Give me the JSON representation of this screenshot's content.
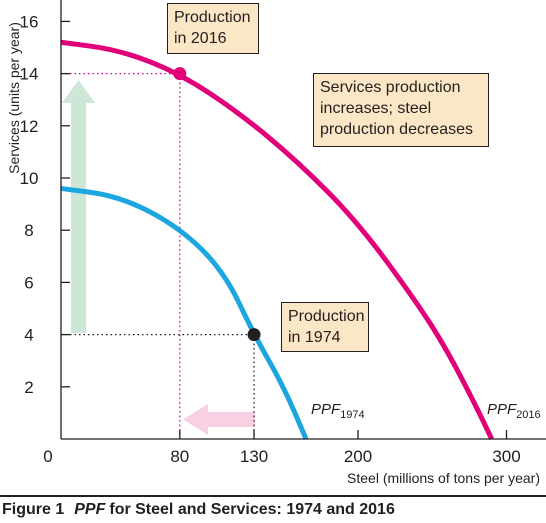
{
  "chart_data": {
    "type": "line",
    "title": "",
    "xlabel": "Steel (millions of tons per year)",
    "ylabel": "Services (units per year)",
    "xlim": [
      0,
      320
    ],
    "ylim": [
      0,
      17
    ],
    "x_ticks": [
      0,
      80,
      130,
      200,
      300
    ],
    "x_tick_labels": [
      "0",
      "80",
      "130",
      "200",
      "300"
    ],
    "y_ticks": [
      2,
      4,
      6,
      8,
      10,
      12,
      14,
      16
    ],
    "y_tick_labels": [
      "2",
      "4",
      "6",
      "8",
      "10",
      "12",
      "14",
      "16"
    ],
    "grid": false,
    "series": [
      {
        "name": "PPF2016",
        "color": "#e2007a",
        "x": [
          0,
          40,
          80,
          120,
          160,
          200,
          240,
          260,
          280,
          290
        ],
        "y": [
          15.2,
          14.9,
          14.0,
          12.5,
          10.6,
          8.3,
          5.2,
          3.4,
          1.2,
          0
        ]
      },
      {
        "name": "PPF1974",
        "color": "#1ba6e0",
        "x": [
          0,
          40,
          80,
          110,
          130,
          150,
          165
        ],
        "y": [
          9.6,
          9.3,
          8.1,
          6.4,
          4.0,
          2.0,
          0
        ]
      }
    ],
    "points": [
      {
        "name": "Production in 2016",
        "x": 80,
        "y": 14,
        "color": "#e2007a"
      },
      {
        "name": "Production in 1974",
        "x": 130,
        "y": 4,
        "color": "#231f20"
      }
    ],
    "arrows": [
      {
        "direction": "up",
        "color": "#cde7d6",
        "meaning": "services increase"
      },
      {
        "direction": "left",
        "color": "#f9cfe3",
        "meaning": "steel decreases"
      }
    ],
    "annotations": {
      "production_2016": [
        "Production",
        "in 2016"
      ],
      "production_1974": [
        "Production",
        "in 1974"
      ],
      "shift_note": [
        "Services production",
        "increases; steel",
        "production decreases"
      ]
    },
    "ppf_labels": {
      "ppf_2016": {
        "main": "PPF",
        "sub": "2016"
      },
      "ppf_1974": {
        "main": "PPF",
        "sub": "1974"
      }
    },
    "accent_colors": {
      "x_80_tick": "#e2007a",
      "y_14_tick": "#e2007a"
    }
  },
  "caption": {
    "figure_number": "Figure 1",
    "ppf_word": "PPF",
    "rest": "for Steel and Services: 1974 and 2016"
  }
}
